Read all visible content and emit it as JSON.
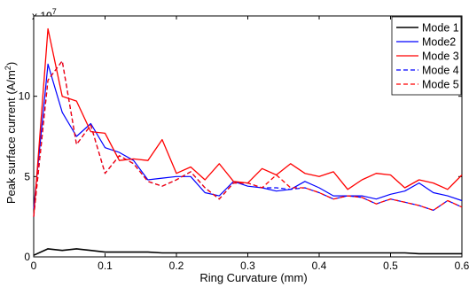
{
  "chart_data": {
    "type": "line",
    "xlabel": "Ring Curvature (mm)",
    "ylabel_main": "Peak surface current (A/m",
    "ylabel_sup": "2",
    "ylabel_close": ")",
    "exponent_base": "x 10",
    "exponent_power": "7",
    "xlim": [
      0,
      0.6
    ],
    "ylim": [
      0,
      15
    ],
    "x_ticks": [
      0,
      0.1,
      0.2,
      0.3,
      0.4,
      0.5,
      0.6
    ],
    "x_tick_labels": [
      "0",
      "0.1",
      "0.2",
      "0.3",
      "0.4",
      "0.5",
      "0.6"
    ],
    "y_ticks": [
      0,
      5,
      10
    ],
    "y_tick_labels": [
      "0",
      "5",
      "10"
    ],
    "grid": false,
    "legend_position": "top-right",
    "x": [
      0,
      0.02,
      0.04,
      0.06,
      0.08,
      0.1,
      0.12,
      0.14,
      0.16,
      0.18,
      0.2,
      0.22,
      0.24,
      0.26,
      0.28,
      0.3,
      0.32,
      0.34,
      0.36,
      0.38,
      0.4,
      0.42,
      0.44,
      0.46,
      0.48,
      0.5,
      0.52,
      0.54,
      0.56,
      0.58,
      0.6
    ],
    "series": [
      {
        "name": "Mode 1",
        "color": "#000000",
        "dash": false,
        "width": 1.6,
        "values": [
          0.1,
          0.5,
          0.4,
          0.5,
          0.4,
          0.3,
          0.3,
          0.3,
          0.3,
          0.25,
          0.25,
          0.25,
          0.25,
          0.25,
          0.25,
          0.25,
          0.25,
          0.25,
          0.25,
          0.25,
          0.25,
          0.25,
          0.25,
          0.25,
          0.25,
          0.25,
          0.25,
          0.2,
          0.2,
          0.2,
          0.2
        ]
      },
      {
        "name": "Mode2",
        "color": "#0000ff",
        "dash": false,
        "width": 1.2,
        "values": [
          3.0,
          12.0,
          9.0,
          7.5,
          8.3,
          6.8,
          6.5,
          6.0,
          4.8,
          4.9,
          5.0,
          5.0,
          4.0,
          3.8,
          4.7,
          4.4,
          4.3,
          4.1,
          4.2,
          4.7,
          4.3,
          3.8,
          3.8,
          3.8,
          3.6,
          3.9,
          4.1,
          4.6,
          4.0,
          3.8,
          3.5
        ]
      },
      {
        "name": "Mode 3",
        "color": "#ff0000",
        "dash": false,
        "width": 1.3,
        "values": [
          2.5,
          14.2,
          10.0,
          9.7,
          7.8,
          7.7,
          6.0,
          6.1,
          6.0,
          7.3,
          5.2,
          5.6,
          4.8,
          5.8,
          4.7,
          4.6,
          5.5,
          5.1,
          5.8,
          5.2,
          5.0,
          5.3,
          4.2,
          4.8,
          5.2,
          5.1,
          4.3,
          4.8,
          4.6,
          4.2,
          5.1
        ]
      },
      {
        "name": "Mode 4",
        "color": "#0000ff",
        "dash": true,
        "width": 1.2,
        "values": [
          2.5,
          11.0,
          12.2,
          7.0,
          8.2,
          5.2,
          6.3,
          5.8,
          4.7,
          4.4,
          4.8,
          5.3,
          4.3,
          3.6,
          4.6,
          4.6,
          4.3,
          4.3,
          4.2,
          4.3,
          4.0,
          3.6,
          3.8,
          3.7,
          3.3,
          3.6,
          3.4,
          3.2,
          2.9,
          3.5,
          3.1
        ]
      },
      {
        "name": "Mode 5",
        "color": "#ff0000",
        "dash": true,
        "width": 1.3,
        "values": [
          2.5,
          11.0,
          12.2,
          7.0,
          8.2,
          5.2,
          6.3,
          5.8,
          4.7,
          4.4,
          4.8,
          5.3,
          4.3,
          3.6,
          4.6,
          4.6,
          4.3,
          5.1,
          4.3,
          4.3,
          4.0,
          3.6,
          3.8,
          3.7,
          3.3,
          3.6,
          3.4,
          3.2,
          2.9,
          3.5,
          3.1
        ]
      }
    ]
  }
}
